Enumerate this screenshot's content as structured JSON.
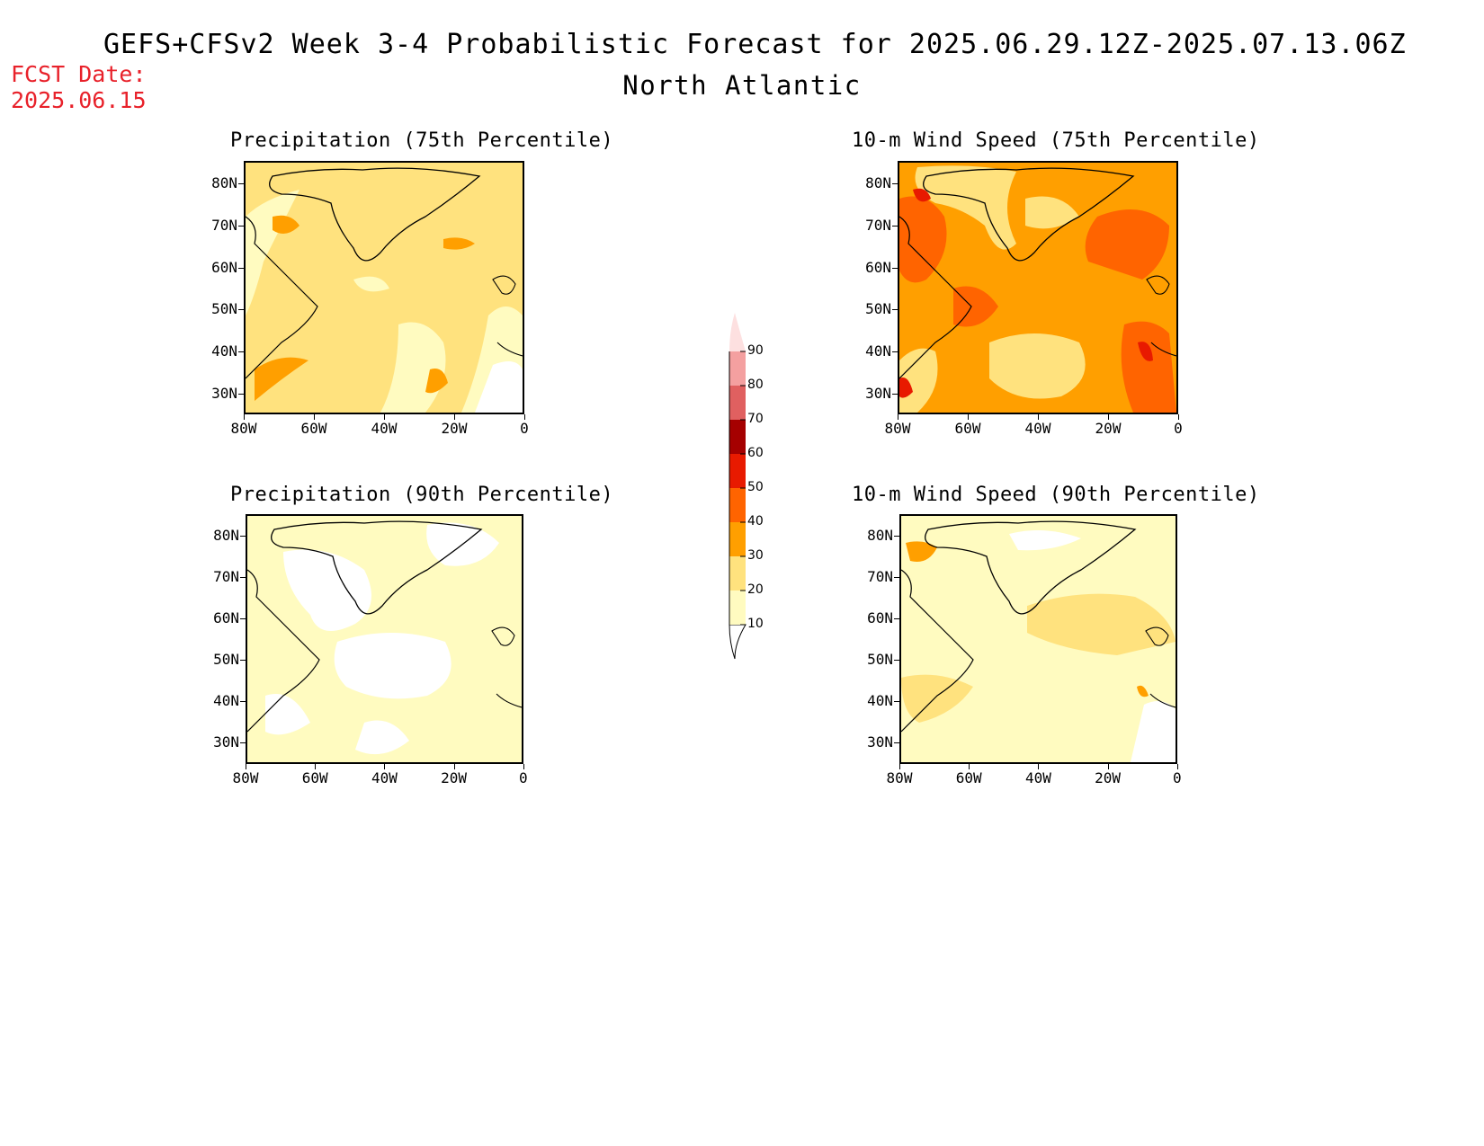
{
  "header": {
    "title": "GEFS+CFSv2 Week 3-4 Probabilistic Forecast for 2025.06.29.12Z-2025.07.13.06Z",
    "region": "North Atlantic",
    "fcst_label": "FCST Date:",
    "fcst_date": "2025.06.15"
  },
  "axes": {
    "lat_labels": [
      "80N",
      "70N",
      "60N",
      "50N",
      "40N",
      "30N"
    ],
    "lon_labels": [
      "80W",
      "60W",
      "40W",
      "20W",
      "0"
    ]
  },
  "panels": [
    {
      "title": "Precipitation (75th Percentile)",
      "dominant_bin": "20-30",
      "patches": [
        "30-40"
      ]
    },
    {
      "title": "10-m Wind Speed (75th Percentile)",
      "dominant_bin": "30-40",
      "patches": [
        "20-30",
        "40-50",
        "50-60"
      ]
    },
    {
      "title": "Precipitation (90th Percentile)",
      "dominant_bin": "10-20",
      "patches": [
        "<10"
      ]
    },
    {
      "title": "10-m Wind Speed (90th Percentile)",
      "dominant_bin": "10-20",
      "patches": [
        "20-30",
        "<10"
      ]
    }
  ],
  "colorbar": {
    "levels": [
      "10",
      "20",
      "30",
      "40",
      "50",
      "60",
      "70",
      "80",
      "90"
    ],
    "colors": [
      "#fffbc0",
      "#ffe27e",
      "#ff9f00",
      "#ff6400",
      "#e81a00",
      "#a50000",
      "#e06060",
      "#f4a0a0",
      "#fde0e0"
    ]
  }
}
